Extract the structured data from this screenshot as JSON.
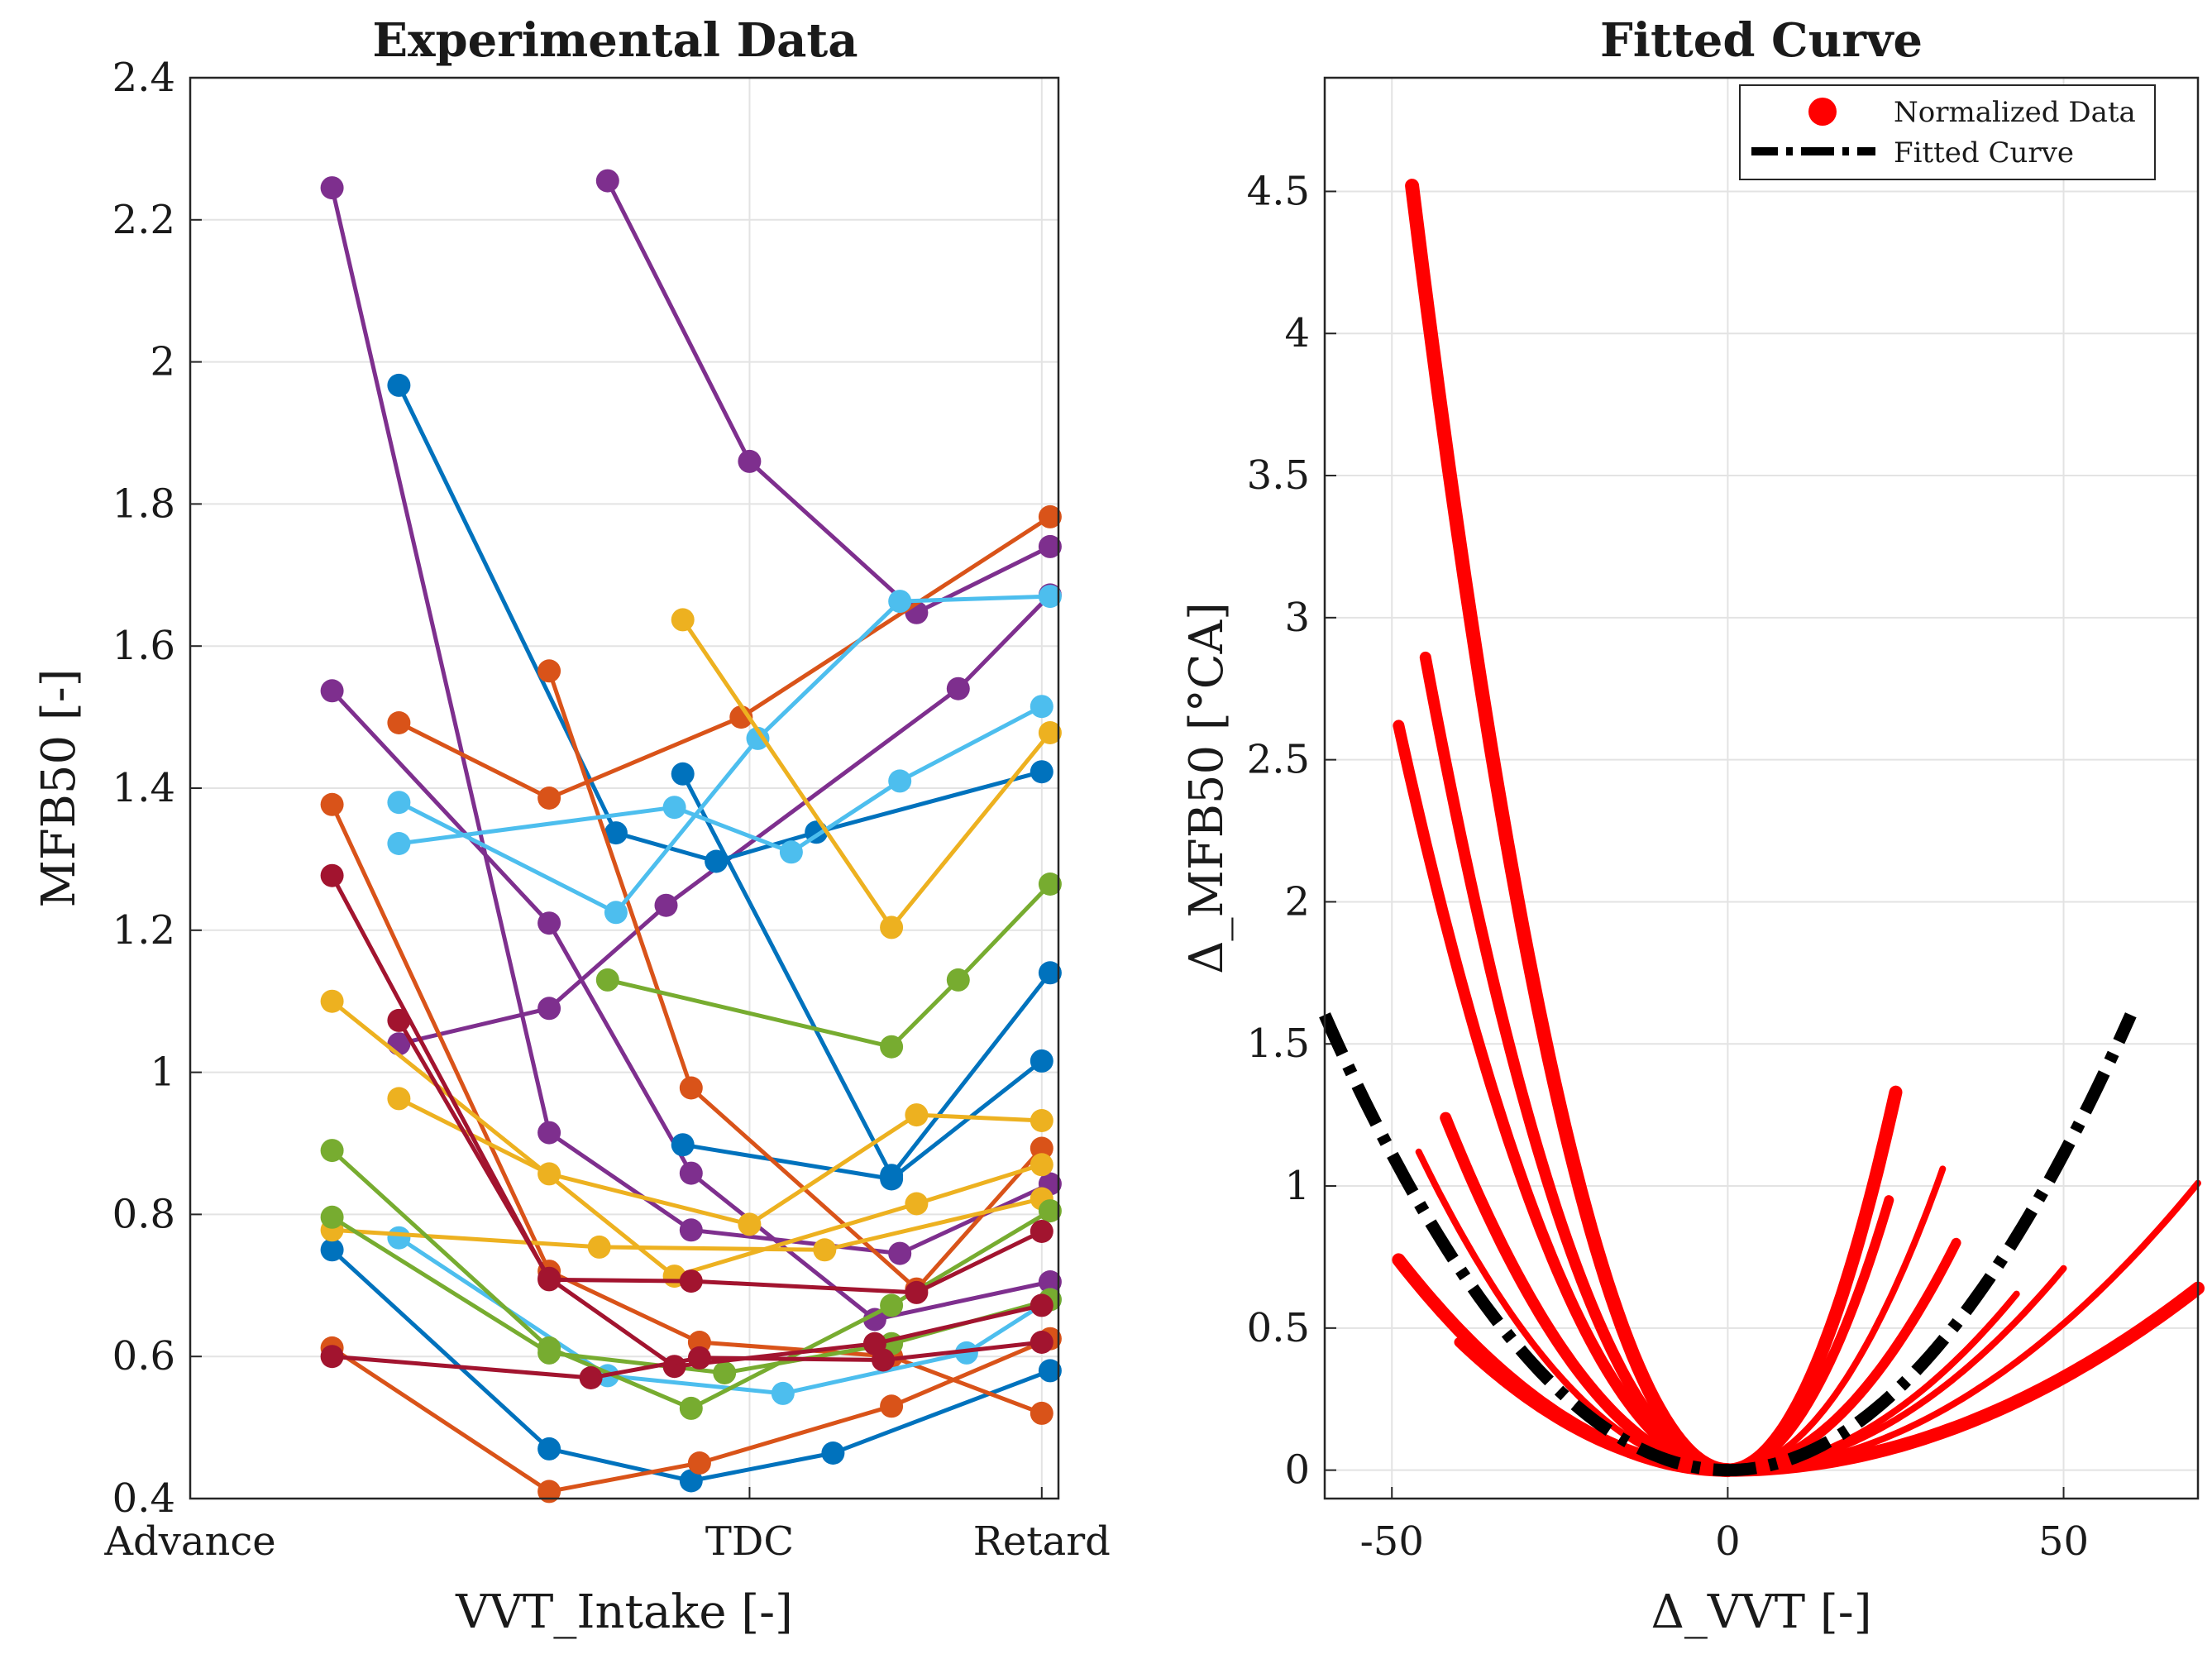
{
  "chart_data": [
    {
      "type": "line",
      "title": "Experimental Data",
      "xlabel": "VVT_Intake [-]",
      "ylabel": "MFB50 [-]",
      "xlim": [
        0,
        10.4
      ],
      "ylim": [
        0.4,
        2.4
      ],
      "grid": true,
      "xticks": [
        {
          "value": 0,
          "label": "Advance"
        },
        {
          "value": 6.7,
          "label": "TDC"
        },
        {
          "value": 10.2,
          "label": "Retard"
        }
      ],
      "yticks": [
        {
          "value": 0.4,
          "label": "0.4"
        },
        {
          "value": 0.6,
          "label": "0.6"
        },
        {
          "value": 0.8,
          "label": "0.8"
        },
        {
          "value": 1.0,
          "label": "1"
        },
        {
          "value": 1.2,
          "label": "1.2"
        },
        {
          "value": 1.4,
          "label": "1.4"
        },
        {
          "value": 1.6,
          "label": "1.6"
        },
        {
          "value": 1.8,
          "label": "1.8"
        },
        {
          "value": 2.0,
          "label": "2"
        },
        {
          "value": 2.2,
          "label": "2.2"
        },
        {
          "value": 2.4,
          "label": "2.4"
        }
      ],
      "series": [
        {
          "name": "s1",
          "color": "#7E2F8E",
          "points": [
            [
              1.7,
              2.245
            ],
            [
              4.3,
              0.915
            ],
            [
              6.0,
              0.778
            ],
            [
              8.5,
              0.745
            ],
            [
              10.3,
              0.843
            ]
          ]
        },
        {
          "name": "s2",
          "color": "#7E2F8E",
          "points": [
            [
              5.0,
              2.255
            ],
            [
              6.7,
              1.86
            ],
            [
              8.7,
              1.647
            ],
            [
              10.3,
              1.74
            ]
          ]
        },
        {
          "name": "s3",
          "color": "#7E2F8E",
          "points": [
            [
              1.7,
              1.537
            ],
            [
              4.3,
              1.21
            ],
            [
              6.0,
              0.858
            ],
            [
              8.2,
              0.652
            ],
            [
              10.3,
              0.705
            ]
          ]
        },
        {
          "name": "s4",
          "color": "#7E2F8E",
          "points": [
            [
              2.5,
              1.04
            ],
            [
              4.3,
              1.09
            ],
            [
              5.7,
              1.235
            ],
            [
              9.2,
              1.54
            ],
            [
              10.3,
              1.672
            ]
          ]
        },
        {
          "name": "s5",
          "color": "#0072BD",
          "points": [
            [
              2.5,
              1.967
            ],
            [
              5.1,
              1.337
            ],
            [
              6.3,
              1.297
            ],
            [
              7.5,
              1.338
            ],
            [
              10.2,
              1.423
            ]
          ]
        },
        {
          "name": "s6",
          "color": "#0072BD",
          "points": [
            [
              5.9,
              1.42
            ],
            [
              8.4,
              0.855
            ],
            [
              10.3,
              1.14
            ]
          ]
        },
        {
          "name": "s7",
          "color": "#0072BD",
          "points": [
            [
              5.9,
              0.898
            ],
            [
              8.4,
              0.85
            ],
            [
              10.2,
              1.016
            ]
          ]
        },
        {
          "name": "s8",
          "color": "#0072BD",
          "points": [
            [
              1.7,
              0.75
            ],
            [
              4.3,
              0.47
            ],
            [
              6.0,
              0.425
            ],
            [
              7.7,
              0.464
            ],
            [
              10.3,
              0.58
            ]
          ]
        },
        {
          "name": "s9",
          "color": "#D95319",
          "points": [
            [
              2.5,
              1.492
            ],
            [
              4.3,
              1.386
            ],
            [
              6.6,
              1.5
            ],
            [
              10.3,
              1.782
            ]
          ]
        },
        {
          "name": "s10",
          "color": "#D95319",
          "points": [
            [
              4.3,
              1.565
            ],
            [
              6.0,
              0.978
            ],
            [
              8.7,
              0.695
            ],
            [
              10.2,
              0.893
            ]
          ]
        },
        {
          "name": "s11",
          "color": "#D95319",
          "points": [
            [
              1.7,
              1.377
            ],
            [
              4.3,
              0.72
            ],
            [
              6.1,
              0.62
            ],
            [
              8.4,
              0.6
            ],
            [
              10.2,
              0.52
            ]
          ]
        },
        {
          "name": "s12",
          "color": "#D95319",
          "points": [
            [
              1.7,
              0.612
            ],
            [
              4.3,
              0.41
            ],
            [
              6.1,
              0.45
            ],
            [
              8.4,
              0.53
            ],
            [
              10.3,
              0.625
            ]
          ]
        },
        {
          "name": "s13",
          "color": "#4DBEEE",
          "points": [
            [
              2.5,
              1.38
            ],
            [
              5.1,
              1.225
            ],
            [
              6.8,
              1.47
            ],
            [
              8.5,
              1.663
            ],
            [
              10.3,
              1.67
            ]
          ]
        },
        {
          "name": "s14",
          "color": "#4DBEEE",
          "points": [
            [
              2.5,
              1.322
            ],
            [
              5.8,
              1.373
            ],
            [
              7.2,
              1.31
            ],
            [
              8.5,
              1.41
            ],
            [
              10.2,
              1.515
            ]
          ]
        },
        {
          "name": "s15",
          "color": "#4DBEEE",
          "points": [
            [
              2.5,
              0.767
            ],
            [
              5.0,
              0.573
            ],
            [
              7.1,
              0.548
            ],
            [
              9.3,
              0.605
            ],
            [
              10.3,
              0.68
            ]
          ]
        },
        {
          "name": "s16",
          "color": "#EDB120",
          "points": [
            [
              5.9,
              1.637
            ],
            [
              8.4,
              1.204
            ],
            [
              10.3,
              1.478
            ]
          ]
        },
        {
          "name": "s17",
          "color": "#EDB120",
          "points": [
            [
              1.7,
              1.1
            ],
            [
              5.8,
              0.713
            ],
            [
              8.7,
              0.815
            ],
            [
              10.2,
              0.87
            ]
          ]
        },
        {
          "name": "s18",
          "color": "#EDB120",
          "points": [
            [
              2.5,
              0.963
            ],
            [
              4.3,
              0.857
            ],
            [
              6.7,
              0.786
            ],
            [
              8.7,
              0.94
            ],
            [
              10.2,
              0.932
            ]
          ]
        },
        {
          "name": "s19",
          "color": "#EDB120",
          "points": [
            [
              1.7,
              0.778
            ],
            [
              4.9,
              0.754
            ],
            [
              7.6,
              0.75
            ],
            [
              10.2,
              0.822
            ]
          ]
        },
        {
          "name": "s20",
          "color": "#77AC30",
          "points": [
            [
              5.0,
              1.13
            ],
            [
              8.4,
              1.036
            ],
            [
              9.2,
              1.13
            ],
            [
              10.3,
              1.265
            ]
          ]
        },
        {
          "name": "s21",
          "color": "#77AC30",
          "points": [
            [
              1.7,
              0.89
            ],
            [
              4.3,
              0.612
            ],
            [
              6.0,
              0.527
            ],
            [
              8.4,
              0.672
            ],
            [
              10.3,
              0.805
            ]
          ]
        },
        {
          "name": "s22",
          "color": "#77AC30",
          "points": [
            [
              1.7,
              0.796
            ],
            [
              4.3,
              0.605
            ],
            [
              6.4,
              0.577
            ],
            [
              8.4,
              0.618
            ],
            [
              10.3,
              0.68
            ]
          ]
        },
        {
          "name": "s23",
          "color": "#A2142F",
          "points": [
            [
              1.7,
              1.277
            ],
            [
              4.3,
              0.708
            ],
            [
              6.0,
              0.706
            ],
            [
              8.7,
              0.69
            ],
            [
              10.2,
              0.776
            ]
          ]
        },
        {
          "name": "s24",
          "color": "#A2142F",
          "points": [
            [
              2.5,
              1.073
            ],
            [
              4.3,
              0.71
            ],
            [
              5.8,
              0.586
            ],
            [
              8.2,
              0.618
            ],
            [
              10.2,
              0.672
            ]
          ]
        },
        {
          "name": "s25",
          "color": "#A2142F",
          "points": [
            [
              1.7,
              0.6
            ],
            [
              4.8,
              0.57
            ],
            [
              6.1,
              0.598
            ],
            [
              8.3,
              0.595
            ],
            [
              10.2,
              0.62
            ]
          ]
        }
      ]
    },
    {
      "type": "line",
      "title": "Fitted Curve",
      "xlabel": "Δ_VVT [-]",
      "ylabel": "Δ_MFB50 [°CA]",
      "xlim": [
        -60,
        70
      ],
      "ylim": [
        -0.1,
        4.9
      ],
      "grid": true,
      "xticks": [
        {
          "value": -50,
          "label": "-50"
        },
        {
          "value": 0,
          "label": "0"
        },
        {
          "value": 50,
          "label": "50"
        }
      ],
      "yticks": [
        {
          "value": 0,
          "label": "0"
        },
        {
          "value": 0.5,
          "label": "0.5"
        },
        {
          "value": 1,
          "label": "1"
        },
        {
          "value": 1.5,
          "label": "1.5"
        },
        {
          "value": 2,
          "label": "2"
        },
        {
          "value": 2.5,
          "label": "2.5"
        },
        {
          "value": 3,
          "label": "3"
        },
        {
          "value": 3.5,
          "label": "3.5"
        },
        {
          "value": 4,
          "label": "4"
        },
        {
          "value": 4.5,
          "label": "4.5"
        }
      ],
      "legend": {
        "position": "top-right",
        "entries": [
          {
            "label": "Normalized Data",
            "color": "#FF0000",
            "style": "marker"
          },
          {
            "label": "Fitted Curve",
            "color": "#000000",
            "style": "dash-dot"
          }
        ]
      },
      "normalized_data": [
        {
          "xmin": -47,
          "xmax": 0,
          "ytop": 4.52,
          "width": 17
        },
        {
          "xmin": -45,
          "xmax": 0,
          "ytop": 2.86,
          "width": 14
        },
        {
          "xmin": -49,
          "xmax": 0,
          "ytop": 2.62,
          "width": 14
        },
        {
          "xmin": -42,
          "xmax": 0,
          "ytop": 1.24,
          "width": 14
        },
        {
          "xmin": -46,
          "xmax": 0,
          "ytop": 1.12,
          "width": 8
        },
        {
          "xmin": -49,
          "xmax": 0,
          "ytop": 0.74,
          "width": 16
        },
        {
          "xmin": -40,
          "xmax": 0,
          "ytop": 0.45,
          "width": 12
        },
        {
          "xmin": 0,
          "xmax": 25,
          "ytop": 1.33,
          "width": 16
        },
        {
          "xmin": 0,
          "xmax": 24,
          "ytop": 0.95,
          "width": 12
        },
        {
          "xmin": 0,
          "xmax": 32,
          "ytop": 1.06,
          "width": 8
        },
        {
          "xmin": 0,
          "xmax": 34,
          "ytop": 0.8,
          "width": 12
        },
        {
          "xmin": 0,
          "xmax": 43,
          "ytop": 0.62,
          "width": 8
        },
        {
          "xmin": 0,
          "xmax": 50,
          "ytop": 0.71,
          "width": 8
        },
        {
          "xmin": 0,
          "xmax": 70,
          "ytop": 1.01,
          "width": 8
        },
        {
          "xmin": 0,
          "xmax": 70,
          "ytop": 0.64,
          "width": 16
        }
      ],
      "fitted_curve": {
        "coefficient": 0.000445,
        "xmin": -60,
        "xmax": 60
      }
    }
  ]
}
